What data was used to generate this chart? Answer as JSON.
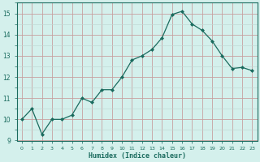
{
  "x": [
    0,
    1,
    2,
    3,
    4,
    5,
    6,
    7,
    8,
    9,
    10,
    11,
    12,
    13,
    14,
    15,
    16,
    17,
    18,
    19,
    20,
    21,
    22,
    23
  ],
  "y": [
    10.0,
    10.5,
    9.3,
    10.0,
    10.0,
    10.2,
    11.0,
    10.8,
    11.4,
    11.4,
    12.0,
    12.8,
    13.0,
    13.3,
    13.85,
    14.95,
    15.1,
    14.5,
    14.2,
    13.7,
    13.0,
    12.4,
    12.45,
    12.3
  ],
  "xlabel": "Humidex (Indice chaleur)",
  "ylim": [
    9,
    15.5
  ],
  "xlim": [
    -0.5,
    23.5
  ],
  "yticks": [
    9,
    10,
    11,
    12,
    13,
    14,
    15
  ],
  "xticks": [
    0,
    1,
    2,
    3,
    4,
    5,
    6,
    7,
    8,
    9,
    10,
    11,
    12,
    13,
    14,
    15,
    16,
    17,
    18,
    19,
    20,
    21,
    22,
    23
  ],
  "line_color": "#1a6b5e",
  "marker_color": "#1a6b5e",
  "bg_color": "#d4f0ec",
  "major_grid_color": "#c8a0a0",
  "minor_grid_color": "#c0d8d4",
  "xlabel_color": "#1a6b5e",
  "tick_color": "#1a6b5e",
  "spine_color": "#1a6b5e"
}
